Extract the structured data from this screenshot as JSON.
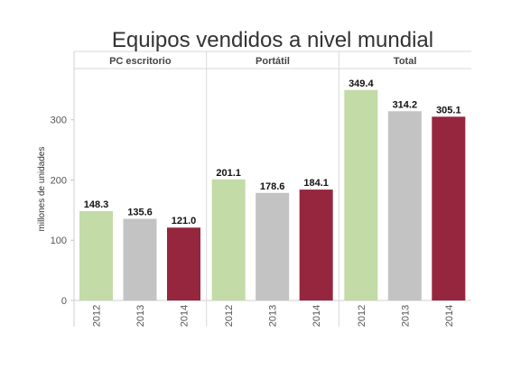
{
  "chart_data": {
    "type": "bar",
    "title": "Equipos vendidos a nivel mundial",
    "ylabel": "millones de unidades",
    "xlabel": "",
    "ylim": [
      0,
      380
    ],
    "yticks": [
      0,
      100,
      200,
      300
    ],
    "grid": false,
    "legend": "none",
    "panels": [
      {
        "name": "PC escritorio",
        "categories": [
          "2012",
          "2013",
          "2014"
        ],
        "values": [
          148.3,
          135.6,
          121.0
        ],
        "labels": [
          "148.3",
          "135.6",
          "121.0"
        ]
      },
      {
        "name": "Portátil",
        "categories": [
          "2012",
          "2013",
          "2014"
        ],
        "values": [
          201.1,
          178.6,
          184.1
        ],
        "labels": [
          "201.1",
          "178.6",
          "184.1"
        ]
      },
      {
        "name": "Total",
        "categories": [
          "2012",
          "2013",
          "2014"
        ],
        "values": [
          349.4,
          314.2,
          305.1
        ],
        "labels": [
          "349.4",
          "314.2",
          "305.1"
        ]
      }
    ],
    "colors": {
      "2012": "#c2dba7",
      "2013": "#c3c3c3",
      "2014": "#95263e"
    }
  }
}
